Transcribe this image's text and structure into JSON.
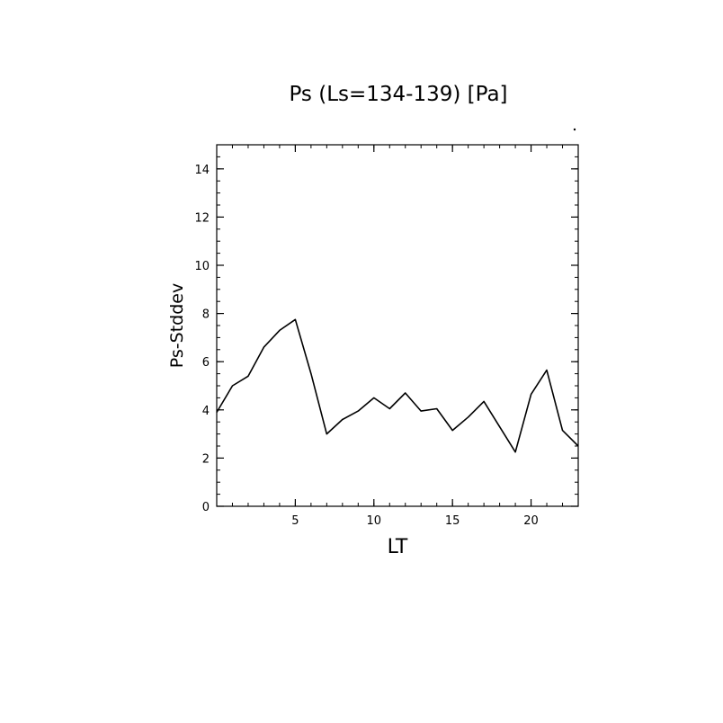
{
  "chart_data": {
    "type": "line",
    "title": "Ps (Ls=134-139) [Pa]",
    "xlabel": "LT",
    "ylabel": "Ps-Stddev",
    "xlim": [
      0,
      23
    ],
    "ylim": [
      0,
      15
    ],
    "x_ticks": [
      5,
      10,
      15,
      20
    ],
    "y_ticks": [
      0,
      2,
      4,
      6,
      8,
      10,
      12,
      14
    ],
    "grid": false,
    "series": [
      {
        "x": [
          0,
          1,
          2,
          3,
          4,
          5,
          6,
          7,
          8,
          9,
          10,
          11,
          12,
          13,
          14,
          15,
          16,
          17,
          18,
          19,
          20,
          21,
          22,
          23
        ],
        "values": [
          3.9,
          5.0,
          5.4,
          6.6,
          7.3,
          7.75,
          5.5,
          3.0,
          3.6,
          3.95,
          4.5,
          4.05,
          4.7,
          3.95,
          4.05,
          3.15,
          3.7,
          4.35,
          3.3,
          2.25,
          4.65,
          5.65,
          3.15,
          2.5
        ]
      }
    ],
    "line_color": "#000000"
  }
}
